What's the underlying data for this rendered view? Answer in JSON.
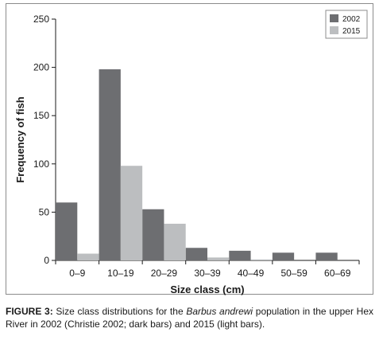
{
  "chart_data": {
    "type": "bar",
    "categories": [
      "0–9",
      "10–19",
      "20–29",
      "30–39",
      "40–49",
      "50–59",
      "60–69"
    ],
    "series": [
      {
        "name": "2002",
        "values": [
          60,
          198,
          53,
          13,
          10,
          8,
          8
        ],
        "color": "#6d6e71"
      },
      {
        "name": "2015",
        "values": [
          7,
          98,
          38,
          3,
          1,
          0,
          0
        ],
        "color": "#bcbec0"
      }
    ],
    "xlabel": "Size class (cm)",
    "ylabel": "Frequency of fish",
    "ylim": [
      0,
      250
    ],
    "yticks": [
      0,
      50,
      100,
      150,
      200,
      250
    ],
    "grid": false,
    "legend_position": "top-right"
  },
  "caption": {
    "label": "FIGURE 3:",
    "text_before": " Size class distributions for the ",
    "species": "Barbus andrewi",
    "text_after": " population in the upper Hex River in 2002 (Christie 2002; dark bars) and 2015 (light bars)."
  }
}
